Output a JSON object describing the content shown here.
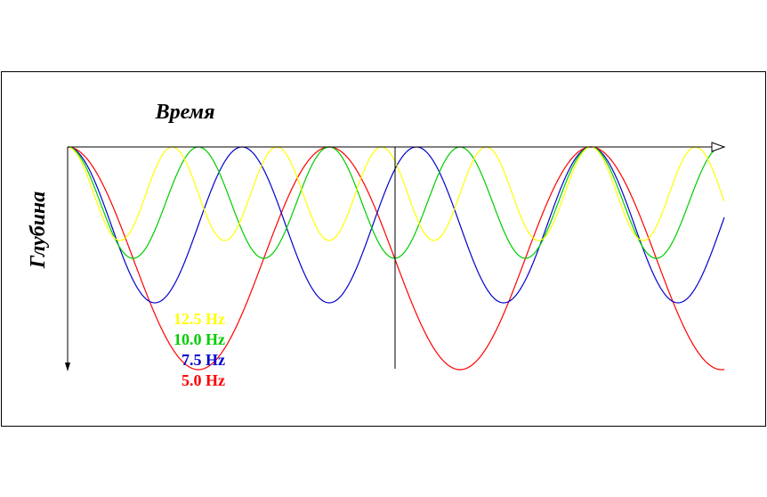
{
  "chart_data": {
    "type": "line",
    "title": "",
    "xlabel": "Время",
    "ylabel": "Глубина",
    "x_direction": "right",
    "y_direction": "down",
    "grid": false,
    "legend_position": "bottom-left",
    "series": [
      {
        "name": "12.5 Hz",
        "color": "#ffff00",
        "frequency": 12.5,
        "amplitude": 0.42
      },
      {
        "name": "10.0 Hz",
        "color": "#00cc00",
        "frequency": 10.0,
        "amplitude": 0.5
      },
      {
        "name": "7.5 Hz",
        "color": "#0000cc",
        "frequency": 7.5,
        "amplitude": 0.7
      },
      {
        "name": "5.0 Hz",
        "color": "#ff0000",
        "frequency": 5.0,
        "amplitude": 1.0
      }
    ]
  }
}
